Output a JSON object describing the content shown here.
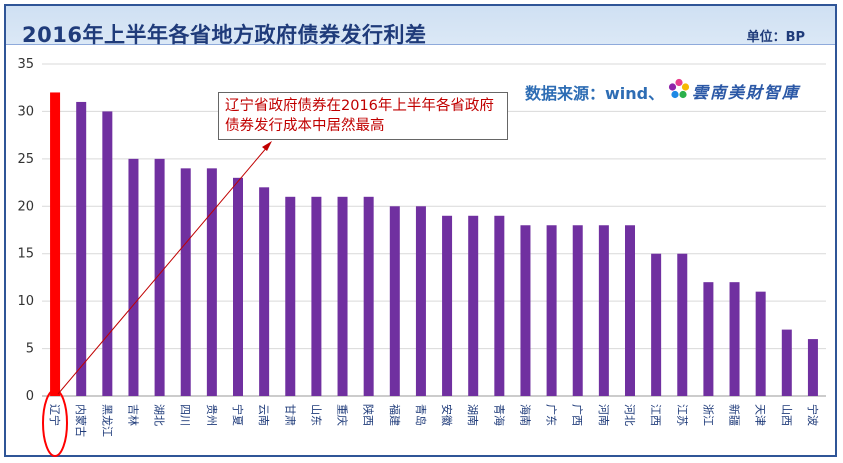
{
  "header": {
    "title": "2016年上半年各省地方政府债券发行利差",
    "unit": "单位：BP"
  },
  "source": {
    "label": "数据来源：wind、",
    "logo_text": "雲南美財智庫",
    "logo_icon": "flower-logo-icon"
  },
  "annotation": {
    "text": "辽宁省政府债券在2016年上半年各省政府债券发行成本中居然最高"
  },
  "colors": {
    "bar": "#7030a0",
    "highlight": "#ff0000",
    "arrow": "#c00000",
    "grid": "#d9d9d9",
    "title": "#1f3b7a"
  },
  "chart_data": {
    "type": "bar",
    "title": "2016年上半年各省地方政府债券发行利差",
    "xlabel": "",
    "ylabel": "",
    "ylim": [
      0,
      35
    ],
    "yticks": [
      0,
      5,
      10,
      15,
      20,
      25,
      30,
      35
    ],
    "grid": true,
    "categories": [
      "辽宁",
      "内蒙古",
      "黑龙江",
      "吉林",
      "湖北",
      "四川",
      "贵州",
      "宁夏",
      "云南",
      "甘肃",
      "山东",
      "重庆",
      "陕西",
      "福建",
      "青岛",
      "安徽",
      "湖南",
      "青海",
      "海南",
      "广东",
      "广西",
      "河南",
      "河北",
      "江西",
      "江苏",
      "浙江",
      "新疆",
      "天津",
      "山西",
      "宁波"
    ],
    "values": [
      32,
      31,
      30,
      25,
      25,
      24,
      24,
      23,
      22,
      21,
      21,
      21,
      21,
      20,
      20,
      19,
      19,
      19,
      18,
      18,
      18,
      18,
      18,
      15,
      15,
      12,
      12,
      11,
      7,
      6
    ],
    "highlight_category": "辽宁"
  }
}
